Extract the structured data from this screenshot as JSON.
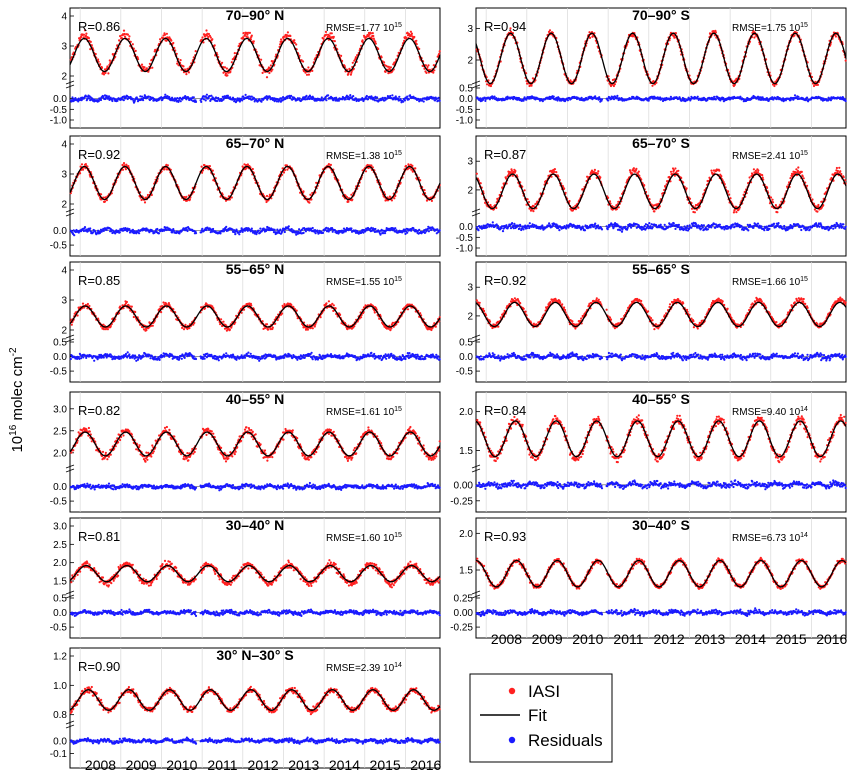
{
  "figure": {
    "ylabel_main": "10",
    "ylabel_exp": "16",
    "ylabel_rest": " molec cm",
    "ylabel_unit_exp": "-2",
    "years": [
      "2008",
      "2009",
      "2010",
      "2011",
      "2012",
      "2013",
      "2014",
      "2015",
      "2016"
    ]
  },
  "legend": {
    "iasi": "IASI",
    "fit": "Fit",
    "residuals": "Residuals"
  },
  "colors": {
    "iasi": "#ff2020",
    "fit": "#000000",
    "residuals": "#1a1aff"
  },
  "chart_data": [
    {
      "type": "line",
      "title": "70–90° N",
      "r_label": "R=0.86",
      "rmse_label": "RMSE=1.77 10",
      "rmse_exp": "15",
      "main_ylim": [
        1.8,
        4.0
      ],
      "main_ticks": [
        "2",
        "3",
        "4"
      ],
      "resid_ylim": [
        -1.0,
        0.5
      ],
      "resid_ticks": [
        "0.0",
        "-0.5",
        "-1.0"
      ],
      "series": [
        {
          "name": "IASI",
          "mean": 2.75,
          "amp": 0.6,
          "phase": 0.1,
          "noise": 0.22
        },
        {
          "name": "Fit",
          "mean": 2.7,
          "amp": 0.55,
          "phase": 0.1
        },
        {
          "name": "Residuals",
          "noise": 0.16
        }
      ]
    },
    {
      "type": "line",
      "title": "70–90° S",
      "r_label": "R=0.94",
      "rmse_label": "RMSE=1.75 10",
      "rmse_exp": "15",
      "main_ylim": [
        1.3,
        3.4
      ],
      "main_ticks": [
        "2",
        "3"
      ],
      "resid_ylim": [
        -1.0,
        0.5
      ],
      "resid_ticks": [
        "0.5",
        "0.0",
        "-0.5",
        "-1.0"
      ],
      "series": [
        {
          "name": "IASI",
          "mean": 2.05,
          "amp": 0.8,
          "phase": 0.6,
          "noise": 0.15
        },
        {
          "name": "Fit",
          "mean": 2.05,
          "amp": 0.8,
          "phase": 0.6
        },
        {
          "name": "Residuals",
          "noise": 0.12
        }
      ]
    },
    {
      "type": "line",
      "title": "65–70° N",
      "r_label": "R=0.92",
      "rmse_label": "RMSE=1.38 10",
      "rmse_exp": "15",
      "main_ylim": [
        1.8,
        4.0
      ],
      "main_ticks": [
        "2",
        "3",
        "4"
      ],
      "resid_ylim": [
        -0.6,
        0.5
      ],
      "resid_ticks": [
        "0.0",
        "-0.5"
      ],
      "series": [
        {
          "name": "IASI",
          "mean": 2.7,
          "amp": 0.55,
          "phase": 0.1,
          "noise": 0.15
        },
        {
          "name": "Fit",
          "mean": 2.7,
          "amp": 0.55,
          "phase": 0.1
        },
        {
          "name": "Residuals",
          "noise": 0.12
        }
      ]
    },
    {
      "type": "line",
      "title": "65–70° S",
      "r_label": "R=0.87",
      "rmse_label": "RMSE=2.41 10",
      "rmse_exp": "15",
      "main_ylim": [
        1.3,
        3.6
      ],
      "main_ticks": [
        "2",
        "3"
      ],
      "resid_ylim": [
        -1.0,
        0.5
      ],
      "resid_ticks": [
        "0.0",
        "-0.5",
        "-1.0"
      ],
      "series": [
        {
          "name": "IASI",
          "mean": 2.0,
          "amp": 0.65,
          "phase": 0.65,
          "noise": 0.2
        },
        {
          "name": "Fit",
          "mean": 1.95,
          "amp": 0.6,
          "phase": 0.65
        },
        {
          "name": "Residuals",
          "noise": 0.18
        }
      ]
    },
    {
      "type": "line",
      "title": "55–65° N",
      "r_label": "R=0.85",
      "rmse_label": "RMSE=1.55 10",
      "rmse_exp": "15",
      "main_ylim": [
        1.8,
        4.0
      ],
      "main_ticks": [
        "2",
        "3",
        "4"
      ],
      "resid_ylim": [
        -0.6,
        0.5
      ],
      "resid_ticks": [
        "0.5",
        "0.0",
        "-0.5"
      ],
      "series": [
        {
          "name": "IASI",
          "mean": 2.45,
          "amp": 0.38,
          "phase": 0.12,
          "noise": 0.15
        },
        {
          "name": "Fit",
          "mean": 2.45,
          "amp": 0.35,
          "phase": 0.12
        },
        {
          "name": "Residuals",
          "noise": 0.12
        }
      ]
    },
    {
      "type": "line",
      "title": "55–65° S",
      "r_label": "R=0.92",
      "rmse_label": "RMSE=1.66 10",
      "rmse_exp": "15",
      "main_ylim": [
        1.3,
        3.6
      ],
      "main_ticks": [
        "2",
        "3"
      ],
      "resid_ylim": [
        -0.6,
        0.5
      ],
      "resid_ticks": [
        "0.5",
        "0.0",
        "-0.5"
      ],
      "series": [
        {
          "name": "IASI",
          "mean": 2.1,
          "amp": 0.45,
          "phase": 0.7,
          "noise": 0.15
        },
        {
          "name": "Fit",
          "mean": 2.05,
          "amp": 0.42,
          "phase": 0.7
        },
        {
          "name": "Residuals",
          "noise": 0.12
        }
      ]
    },
    {
      "type": "line",
      "title": "40–55° N",
      "r_label": "R=0.82",
      "rmse_label": "RMSE=1.61 10",
      "rmse_exp": "15",
      "main_ylim": [
        1.7,
        3.2
      ],
      "main_ticks": [
        "2.0",
        "2.5",
        "3.0"
      ],
      "resid_ylim": [
        -0.6,
        0.5
      ],
      "resid_ticks": [
        "0.0",
        "-0.5"
      ],
      "series": [
        {
          "name": "IASI",
          "mean": 2.2,
          "amp": 0.3,
          "phase": 0.12,
          "noise": 0.13
        },
        {
          "name": "Fit",
          "mean": 2.2,
          "amp": 0.27,
          "phase": 0.12
        },
        {
          "name": "Residuals",
          "noise": 0.1
        }
      ]
    },
    {
      "type": "line",
      "title": "40–55° S",
      "r_label": "R=0.84",
      "rmse_label": "RMSE=9.40 10",
      "rmse_exp": "14",
      "main_ylim": [
        1.3,
        2.15
      ],
      "main_ticks": [
        "1.5",
        "2.0"
      ],
      "resid_ylim": [
        -0.3,
        0.2
      ],
      "resid_ticks": [
        "0.00",
        "-0.25"
      ],
      "series": [
        {
          "name": "IASI",
          "mean": 1.65,
          "amp": 0.25,
          "phase": 0.72,
          "noise": 0.08
        },
        {
          "name": "Fit",
          "mean": 1.65,
          "amp": 0.23,
          "phase": 0.72
        },
        {
          "name": "Residuals",
          "noise": 0.06
        }
      ]
    },
    {
      "type": "line",
      "title": "30–40° N",
      "r_label": "R=0.81",
      "rmse_label": "RMSE=1.60 10",
      "rmse_exp": "15",
      "main_ylim": [
        1.2,
        3.0
      ],
      "main_ticks": [
        "1.5",
        "2.0",
        "2.5",
        "3.0"
      ],
      "resid_ylim": [
        -0.6,
        0.5
      ],
      "resid_ticks": [
        "0.5",
        "0.0",
        "-0.5"
      ],
      "series": [
        {
          "name": "IASI",
          "mean": 1.7,
          "amp": 0.25,
          "phase": 0.15,
          "noise": 0.14
        },
        {
          "name": "Fit",
          "mean": 1.7,
          "amp": 0.22,
          "phase": 0.15
        },
        {
          "name": "Residuals",
          "noise": 0.1
        }
      ]
    },
    {
      "type": "line",
      "title": "30–40° S",
      "r_label": "R=0.93",
      "rmse_label": "RMSE=6.73 10",
      "rmse_exp": "14",
      "main_ylim": [
        1.2,
        2.1
      ],
      "main_ticks": [
        "1.5",
        "2.0"
      ],
      "resid_ylim": [
        -0.3,
        0.25
      ],
      "resid_ticks": [
        "0.25",
        "0.00",
        "-0.25"
      ],
      "series": [
        {
          "name": "IASI",
          "mean": 1.45,
          "amp": 0.18,
          "phase": 0.75,
          "noise": 0.05
        },
        {
          "name": "Fit",
          "mean": 1.45,
          "amp": 0.18,
          "phase": 0.75
        },
        {
          "name": "Residuals",
          "noise": 0.05
        }
      ]
    },
    {
      "type": "line",
      "title": "30° N–30° S",
      "r_label": "R=0.90",
      "rmse_label": "RMSE=2.39 10",
      "rmse_exp": "14",
      "main_ylim": [
        0.75,
        1.2
      ],
      "main_ticks": [
        "0.8",
        "1.0",
        "1.2"
      ],
      "resid_ylim": [
        -0.15,
        0.1
      ],
      "resid_ticks": [
        "0.0",
        "-0.1"
      ],
      "series": [
        {
          "name": "IASI",
          "mean": 0.9,
          "amp": 0.07,
          "phase": 0.2,
          "noise": 0.03
        },
        {
          "name": "Fit",
          "mean": 0.9,
          "amp": 0.07,
          "phase": 0.2
        },
        {
          "name": "Residuals",
          "noise": 0.02
        }
      ]
    }
  ]
}
